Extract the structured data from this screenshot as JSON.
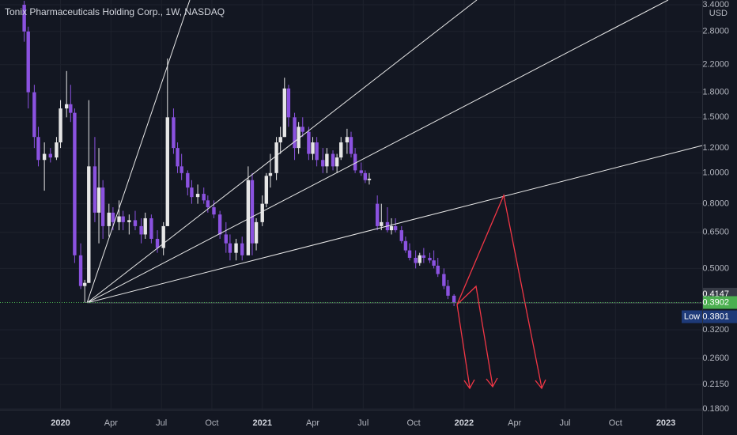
{
  "chart_data": {
    "type": "candlestick",
    "title": "Tonix Pharmaceuticals Holding Corp., 1W, NASDAQ",
    "currency": "USD",
    "log_scale": true,
    "up_color": "#e6e6e6",
    "down_color": "#8b52e0",
    "x": [
      2019.82,
      2019.84,
      2019.87,
      2019.89,
      2019.92,
      2019.95,
      2019.98,
      2020.0,
      2020.03,
      2020.05,
      2020.07,
      2020.1,
      2020.12,
      2020.14,
      2020.17,
      2020.19,
      2020.21,
      2020.24,
      2020.26,
      2020.29,
      2020.31,
      2020.34,
      2020.37,
      2020.4,
      2020.42,
      2020.45,
      2020.48,
      2020.51,
      2020.53,
      2020.56,
      2020.58,
      2020.6,
      2020.63,
      2020.65,
      2020.68,
      2020.71,
      2020.73,
      2020.76,
      2020.79,
      2020.82,
      2020.84,
      2020.87,
      2020.9,
      2020.93,
      2020.95,
      2020.97,
      2021.0,
      2021.02,
      2021.04,
      2021.07,
      2021.09,
      2021.11,
      2021.13,
      2021.16,
      2021.18,
      2021.2,
      2021.23,
      2021.25,
      2021.27,
      2021.3,
      2021.32,
      2021.35,
      2021.37,
      2021.39,
      2021.42,
      2021.44,
      2021.46,
      2021.49,
      2021.51,
      2021.53,
      2021.57,
      2021.59,
      2021.62,
      2021.64,
      2021.66,
      2021.69,
      2021.71,
      2021.73,
      2021.76,
      2021.78,
      2021.8,
      2021.83,
      2021.85,
      2021.87,
      2021.9,
      2021.92,
      2021.95
    ],
    "candles": [
      [
        3.4,
        3.5,
        2.6,
        2.8
      ],
      [
        2.8,
        2.9,
        1.6,
        1.8
      ],
      [
        1.8,
        1.9,
        1.2,
        1.3
      ],
      [
        1.3,
        1.4,
        1.05,
        1.1
      ],
      [
        1.1,
        1.25,
        0.88,
        1.15
      ],
      [
        1.15,
        1.2,
        1.08,
        1.12
      ],
      [
        1.12,
        1.3,
        1.1,
        1.25
      ],
      [
        1.25,
        1.7,
        1.2,
        1.6
      ],
      [
        1.6,
        2.1,
        1.5,
        1.65
      ],
      [
        1.65,
        1.9,
        1.45,
        1.55
      ],
      [
        1.55,
        1.6,
        0.52,
        0.55
      ],
      [
        0.55,
        0.6,
        0.43,
        0.44
      ],
      [
        0.44,
        0.46,
        0.39,
        0.45
      ],
      [
        0.45,
        1.7,
        0.45,
        1.05
      ],
      [
        1.05,
        1.3,
        0.7,
        0.75
      ],
      [
        0.75,
        1.2,
        0.6,
        0.9
      ],
      [
        0.9,
        0.95,
        0.62,
        0.68
      ],
      [
        0.68,
        0.8,
        0.63,
        0.75
      ],
      [
        0.75,
        0.78,
        0.66,
        0.7
      ],
      [
        0.7,
        0.82,
        0.66,
        0.73
      ],
      [
        0.73,
        0.76,
        0.66,
        0.7
      ],
      [
        0.7,
        0.74,
        0.64,
        0.71
      ],
      [
        0.71,
        0.76,
        0.66,
        0.68
      ],
      [
        0.68,
        0.72,
        0.6,
        0.64
      ],
      [
        0.64,
        0.75,
        0.62,
        0.72
      ],
      [
        0.72,
        0.74,
        0.6,
        0.62
      ],
      [
        0.62,
        0.66,
        0.56,
        0.58
      ],
      [
        0.58,
        0.7,
        0.55,
        0.68
      ],
      [
        0.68,
        2.3,
        0.68,
        1.5
      ],
      [
        1.5,
        1.6,
        1.15,
        1.2
      ],
      [
        1.2,
        1.25,
        1.0,
        1.05
      ],
      [
        1.05,
        1.15,
        0.95,
        1.0
      ],
      [
        1.0,
        1.02,
        0.85,
        0.9
      ],
      [
        0.9,
        0.95,
        0.8,
        0.84
      ],
      [
        0.84,
        0.92,
        0.8,
        0.86
      ],
      [
        0.86,
        0.9,
        0.8,
        0.82
      ],
      [
        0.82,
        0.85,
        0.75,
        0.78
      ],
      [
        0.78,
        0.82,
        0.72,
        0.74
      ],
      [
        0.74,
        0.76,
        0.62,
        0.64
      ],
      [
        0.64,
        0.7,
        0.56,
        0.6
      ],
      [
        0.6,
        0.64,
        0.53,
        0.56
      ],
      [
        0.56,
        0.62,
        0.53,
        0.6
      ],
      [
        0.6,
        0.63,
        0.53,
        0.55
      ],
      [
        0.55,
        1.05,
        0.55,
        0.95
      ],
      [
        0.95,
        1.0,
        0.55,
        0.6
      ],
      [
        0.6,
        0.72,
        0.57,
        0.7
      ],
      [
        0.7,
        0.85,
        0.68,
        0.8
      ],
      [
        0.8,
        1.0,
        0.78,
        0.98
      ],
      [
        0.98,
        1.15,
        0.9,
        1.0
      ],
      [
        1.0,
        1.3,
        0.95,
        1.25
      ],
      [
        1.25,
        1.4,
        1.15,
        1.3
      ],
      [
        1.3,
        2.0,
        1.3,
        1.85
      ],
      [
        1.85,
        1.9,
        1.4,
        1.5
      ],
      [
        1.5,
        1.55,
        1.1,
        1.2
      ],
      [
        1.2,
        1.45,
        1.15,
        1.4
      ],
      [
        1.4,
        1.5,
        1.3,
        1.35
      ],
      [
        1.35,
        1.4,
        1.1,
        1.15
      ],
      [
        1.15,
        1.3,
        1.1,
        1.25
      ],
      [
        1.25,
        1.3,
        1.05,
        1.1
      ],
      [
        1.1,
        1.2,
        1.0,
        1.05
      ],
      [
        1.05,
        1.2,
        1.0,
        1.15
      ],
      [
        1.15,
        1.18,
        1.02,
        1.05
      ],
      [
        1.05,
        1.15,
        1.0,
        1.12
      ],
      [
        1.12,
        1.3,
        1.1,
        1.25
      ],
      [
        1.25,
        1.38,
        1.15,
        1.3
      ],
      [
        1.3,
        1.35,
        1.12,
        1.15
      ],
      [
        1.15,
        1.2,
        1.0,
        1.02
      ],
      [
        1.02,
        1.08,
        0.98,
        1.0
      ],
      [
        1.0,
        1.02,
        0.93,
        0.95
      ],
      [
        0.95,
        1.0,
        0.92,
        0.96
      ],
      [
        0.8,
        0.85,
        0.66,
        0.68
      ],
      [
        0.68,
        0.8,
        0.66,
        0.7
      ],
      [
        0.7,
        0.78,
        0.65,
        0.66
      ],
      [
        0.66,
        0.72,
        0.64,
        0.68
      ],
      [
        0.68,
        0.72,
        0.65,
        0.66
      ],
      [
        0.66,
        0.68,
        0.6,
        0.61
      ],
      [
        0.61,
        0.63,
        0.56,
        0.57
      ],
      [
        0.57,
        0.6,
        0.53,
        0.54
      ],
      [
        0.54,
        0.57,
        0.5,
        0.52
      ],
      [
        0.52,
        0.56,
        0.51,
        0.55
      ],
      [
        0.55,
        0.58,
        0.52,
        0.54
      ],
      [
        0.54,
        0.56,
        0.52,
        0.53
      ],
      [
        0.53,
        0.57,
        0.5,
        0.51
      ],
      [
        0.51,
        0.54,
        0.47,
        0.48
      ],
      [
        0.48,
        0.5,
        0.43,
        0.44
      ],
      [
        0.44,
        0.46,
        0.4,
        0.41
      ],
      [
        0.41,
        0.4147,
        0.3801,
        0.3902
      ]
    ],
    "xlim": [
      2019.7,
      2023.18
    ],
    "xticks": [
      {
        "value": 2020,
        "label": "2020"
      },
      {
        "value": 2020.25,
        "label": "Apr"
      },
      {
        "value": 2020.5,
        "label": "Jul"
      },
      {
        "value": 2020.75,
        "label": "Oct"
      },
      {
        "value": 2021,
        "label": "2021"
      },
      {
        "value": 2021.25,
        "label": "Apr"
      },
      {
        "value": 2021.5,
        "label": "Jul"
      },
      {
        "value": 2021.75,
        "label": "Oct"
      },
      {
        "value": 2022,
        "label": "2022"
      },
      {
        "value": 2022.25,
        "label": "Apr"
      },
      {
        "value": 2022.5,
        "label": "Jul"
      },
      {
        "value": 2022.75,
        "label": "Oct"
      },
      {
        "value": 2023,
        "label": "2023"
      }
    ],
    "ylim": [
      0.179,
      3.52
    ],
    "yticks": [
      {
        "value": 3.4,
        "label": "3.4000"
      },
      {
        "value": 2.8,
        "label": "2.8000"
      },
      {
        "value": 2.2,
        "label": "2.2000"
      },
      {
        "value": 1.8,
        "label": "1.8000"
      },
      {
        "value": 1.5,
        "label": "1.5000"
      },
      {
        "value": 1.2,
        "label": "1.2000"
      },
      {
        "value": 1.0,
        "label": "1.0000"
      },
      {
        "value": 0.8,
        "label": "0.8000"
      },
      {
        "value": 0.65,
        "label": "0.6500"
      },
      {
        "value": 0.5,
        "label": "0.5000"
      },
      {
        "value": 0.32,
        "label": "0.3200"
      },
      {
        "value": 0.26,
        "label": "0.2600"
      },
      {
        "value": 0.215,
        "label": "0.2150"
      },
      {
        "value": 0.18,
        "label": "0.1800"
      }
    ],
    "grid": true,
    "price_labels": [
      {
        "value": 0.4147,
        "label": "0.4147",
        "color": "#363a45"
      },
      {
        "value": 0.3902,
        "label": "0.3902",
        "color": "#4caf50"
      },
      {
        "value": 0.3801,
        "label": "0.3801",
        "name": "Low",
        "color": "#1e3a78"
      }
    ]
  }
}
